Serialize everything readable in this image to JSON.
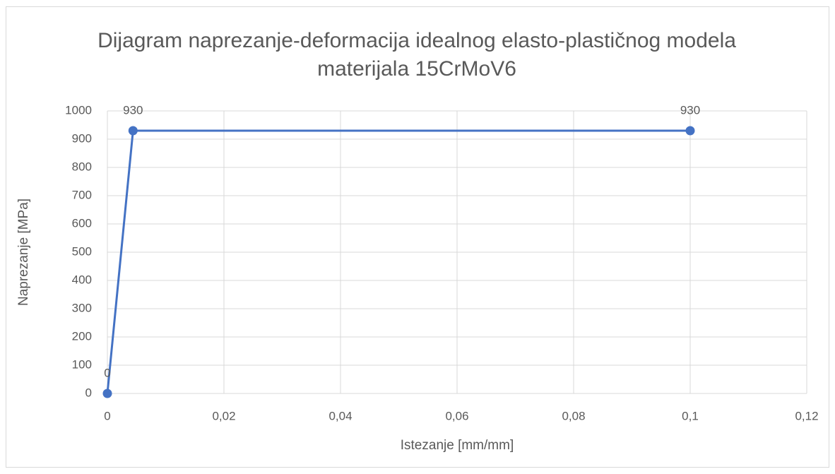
{
  "chart_data": {
    "type": "scatter-line",
    "title": "Dijagram naprezanje-deformacija idealnog elasto-plastičnog modela materijala 15CrMoV6",
    "x_label": "Istezanje [mm/mm]",
    "y_label": "Naprezanje [MPa]",
    "x": [
      0,
      0.0044,
      0.1
    ],
    "values": [
      0,
      930,
      930
    ],
    "color": "#4472c4",
    "xlim": [
      0,
      0.12
    ],
    "xticks": [
      0,
      {
        "value": 0.02,
        "label": "0,02"
      },
      {
        "value": 0.04,
        "label": "0,04"
      },
      {
        "value": 0.06,
        "label": "0,06"
      },
      {
        "value": 0.08,
        "label": "0,08"
      },
      {
        "value": 0.1,
        "label": "0,1"
      },
      {
        "value": 0.12,
        "label": "0,12"
      }
    ],
    "ylim": [
      0,
      1000
    ],
    "yticks": [
      0,
      100,
      200,
      300,
      400,
      500,
      600,
      700,
      800,
      900,
      1000
    ],
    "grid": true,
    "data_labels": true
  }
}
